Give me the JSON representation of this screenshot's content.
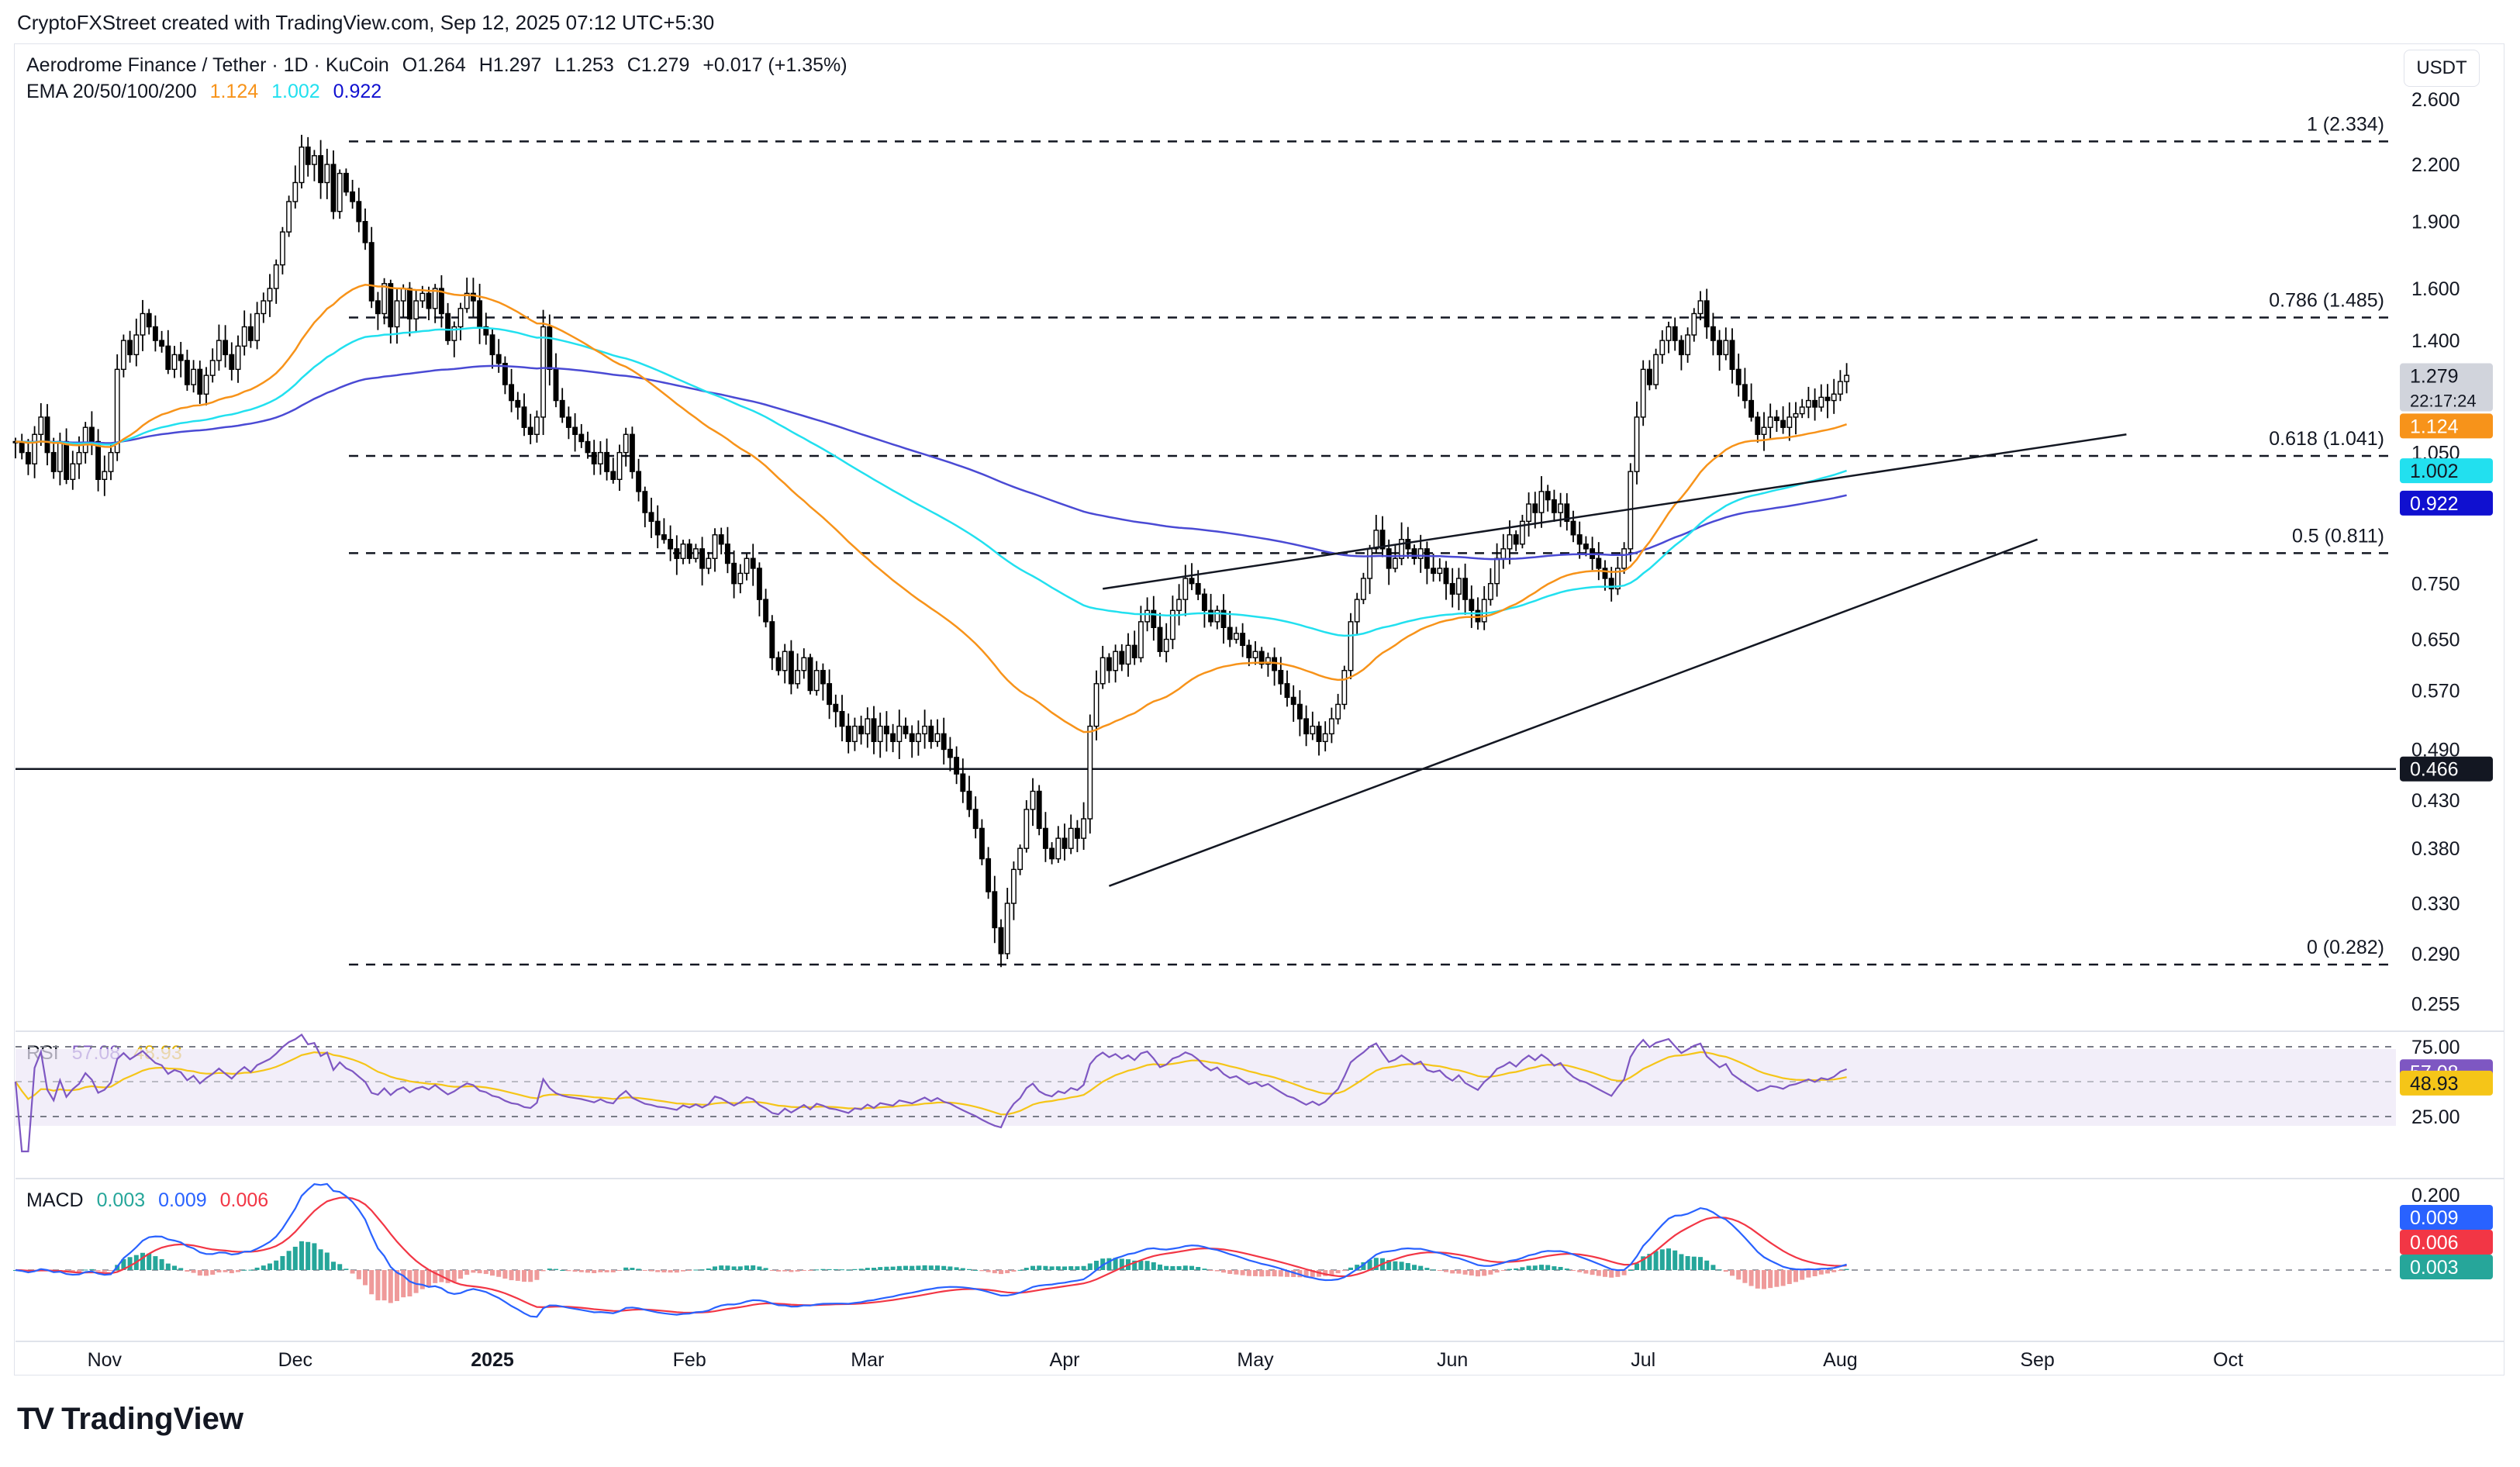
{
  "topbar": {
    "text": "CryptoFXStreet created with TradingView.com, Sep 12, 2025 07:12 UTC+5:30"
  },
  "header": {
    "symbol": "Aerodrome Finance / Tether · 1D · KuCoin",
    "open": "O1.264",
    "high": "H1.297",
    "low": "L1.253",
    "close": "C1.279",
    "change": "+0.017 (+1.35%)",
    "ema_label": "EMA 20/50/100/200",
    "ema20": "1.124",
    "ema50": "1.002",
    "ema100": "0.922",
    "rsi_label": "RSI",
    "rsi_value": "57.08",
    "rsi_ma": "48.93",
    "macd_label": "MACD",
    "macd_hist": "0.003",
    "macd_line": "0.009",
    "macd_signal": "0.006"
  },
  "currency": "USDT",
  "colors": {
    "ema20": "#f7931a",
    "ema50": "#22e0ef",
    "ema100": "#4a4ad4",
    "ema200": "#1010d0",
    "rsi": "#7e57c2",
    "rsi_ma": "#f5c518",
    "macd": "#2962ff",
    "signal": "#f23645",
    "hist_up": "#26a69a",
    "hist_down": "#ef9a9a",
    "up": "#ffffff",
    "down": "#000000"
  },
  "price_axis": {
    "ticks": [
      "2.600",
      "2.200",
      "1.900",
      "1.600",
      "1.400",
      "1.050",
      "0.750",
      "0.650",
      "0.570",
      "0.490",
      "0.430",
      "0.380",
      "0.330",
      "0.290",
      "0.255"
    ]
  },
  "price_tags": [
    {
      "text": "1.279",
      "sub": "22:17:24",
      "bg": "#d1d4dc",
      "fg": "#131722",
      "value": 1.279
    },
    {
      "text": "1.124",
      "bg": "#f7931a",
      "fg": "#ffffff",
      "value": 1.124
    },
    {
      "text": "1.002",
      "bg": "#22e0ef",
      "fg": "#131722",
      "value": 1.002
    },
    {
      "text": "0.922",
      "bg": "#1010d0",
      "fg": "#ffffff",
      "value": 0.922
    },
    {
      "text": "0.466",
      "bg": "#131722",
      "fg": "#ffffff",
      "value": 0.466
    }
  ],
  "time_axis": [
    "Nov",
    "Dec",
    "2025",
    "Feb",
    "Mar",
    "Apr",
    "May",
    "Jun",
    "Jul",
    "Aug",
    "Sep",
    "Oct"
  ],
  "fib_levels": [
    {
      "label": "1 (2.334)",
      "value": 2.334
    },
    {
      "label": "0.786 (1.485)",
      "value": 1.485
    },
    {
      "label": "0.618 (1.041)",
      "value": 1.041
    },
    {
      "label": "0.5 (0.811)",
      "value": 0.811
    },
    {
      "label": "0 (0.282)",
      "value": 0.282
    }
  ],
  "support_line": 0.466,
  "rsi_axis": [
    "75.00",
    "25.00"
  ],
  "rsi_tags": [
    {
      "text": "57.08",
      "bg": "#7e57c2",
      "fg": "#ffffff",
      "value": 57.08
    },
    {
      "text": "48.93",
      "bg": "#f5c518",
      "fg": "#131722",
      "value": 48.93
    }
  ],
  "macd_axis": [
    "0.200"
  ],
  "macd_tags": [
    {
      "text": "0.009",
      "bg": "#2962ff",
      "fg": "#ffffff",
      "value": 0.009
    },
    {
      "text": "0.006",
      "bg": "#f23645",
      "fg": "#ffffff",
      "value": 0.006
    },
    {
      "text": "0.003",
      "bg": "#26a69a",
      "fg": "#ffffff",
      "value": 0.003
    }
  ],
  "brand": "TradingView",
  "chart_data": {
    "type": "candlestick",
    "price_scale": "log",
    "x_start": "2024-10-18",
    "closes": [
      1.08,
      1.05,
      1.02,
      1.1,
      1.15,
      1.05,
      1.0,
      1.08,
      0.98,
      1.02,
      1.05,
      1.12,
      1.08,
      0.98,
      1.0,
      1.05,
      1.3,
      1.4,
      1.35,
      1.42,
      1.5,
      1.45,
      1.4,
      1.38,
      1.3,
      1.35,
      1.33,
      1.25,
      1.3,
      1.22,
      1.28,
      1.33,
      1.4,
      1.35,
      1.3,
      1.38,
      1.45,
      1.4,
      1.5,
      1.55,
      1.6,
      1.7,
      1.85,
      2.0,
      2.1,
      2.3,
      2.2,
      2.25,
      2.1,
      2.2,
      1.95,
      2.15,
      2.05,
      2.0,
      1.9,
      1.8,
      1.55,
      1.5,
      1.62,
      1.45,
      1.55,
      1.6,
      1.48,
      1.55,
      1.58,
      1.52,
      1.6,
      1.5,
      1.4,
      1.45,
      1.52,
      1.58,
      1.55,
      1.45,
      1.42,
      1.35,
      1.32,
      1.25,
      1.2,
      1.18,
      1.12,
      1.1,
      1.15,
      1.45,
      1.3,
      1.2,
      1.15,
      1.12,
      1.1,
      1.08,
      1.05,
      1.02,
      1.05,
      1.0,
      0.98,
      1.05,
      1.1,
      1.0,
      0.95,
      0.9,
      0.88,
      0.85,
      0.84,
      0.82,
      0.8,
      0.83,
      0.8,
      0.82,
      0.78,
      0.8,
      0.85,
      0.83,
      0.79,
      0.75,
      0.77,
      0.8,
      0.78,
      0.72,
      0.68,
      0.62,
      0.6,
      0.63,
      0.58,
      0.6,
      0.62,
      0.57,
      0.6,
      0.58,
      0.55,
      0.54,
      0.52,
      0.5,
      0.52,
      0.51,
      0.53,
      0.5,
      0.52,
      0.51,
      0.5,
      0.52,
      0.51,
      0.5,
      0.51,
      0.52,
      0.5,
      0.51,
      0.49,
      0.48,
      0.46,
      0.44,
      0.42,
      0.4,
      0.37,
      0.34,
      0.31,
      0.29,
      0.33,
      0.36,
      0.38,
      0.42,
      0.44,
      0.4,
      0.38,
      0.37,
      0.39,
      0.38,
      0.4,
      0.39,
      0.41,
      0.52,
      0.58,
      0.62,
      0.6,
      0.63,
      0.61,
      0.64,
      0.62,
      0.68,
      0.7,
      0.67,
      0.63,
      0.65,
      0.7,
      0.72,
      0.76,
      0.75,
      0.73,
      0.7,
      0.68,
      0.7,
      0.67,
      0.65,
      0.66,
      0.64,
      0.62,
      0.63,
      0.61,
      0.62,
      0.6,
      0.58,
      0.56,
      0.55,
      0.53,
      0.51,
      0.52,
      0.5,
      0.51,
      0.53,
      0.55,
      0.6,
      0.68,
      0.72,
      0.76,
      0.82,
      0.86,
      0.82,
      0.78,
      0.8,
      0.84,
      0.82,
      0.8,
      0.82,
      0.78,
      0.77,
      0.78,
      0.75,
      0.73,
      0.76,
      0.72,
      0.7,
      0.68,
      0.72,
      0.75,
      0.8,
      0.82,
      0.85,
      0.83,
      0.88,
      0.92,
      0.9,
      0.95,
      0.93,
      0.9,
      0.92,
      0.88,
      0.85,
      0.83,
      0.82,
      0.8,
      0.78,
      0.76,
      0.74,
      0.78,
      0.82,
      1.0,
      1.15,
      1.3,
      1.25,
      1.35,
      1.4,
      1.45,
      1.4,
      1.35,
      1.42,
      1.5,
      1.55,
      1.45,
      1.4,
      1.35,
      1.4,
      1.3,
      1.25,
      1.2,
      1.15,
      1.1,
      1.12,
      1.15,
      1.14,
      1.12,
      1.15,
      1.16,
      1.18,
      1.2,
      1.18,
      1.21,
      1.2,
      1.22,
      1.26,
      1.28
    ]
  }
}
